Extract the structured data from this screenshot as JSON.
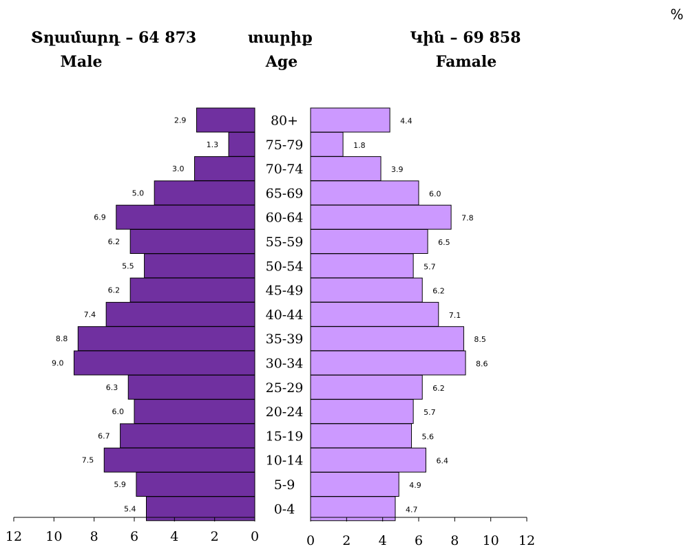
{
  "unit_label": "%",
  "headers": {
    "male_title": "Տղամարդ – 64 873",
    "male_subtitle": "Male",
    "age_title": "տարիք",
    "age_subtitle": "Age",
    "female_title": "Կին – 69 858",
    "female_subtitle": "Famale"
  },
  "chart_data": {
    "type": "bar",
    "orientation": "horizontal-population-pyramid",
    "categories": [
      "80+",
      "75-79",
      "70-74",
      "65-69",
      "60-64",
      "55-59",
      "50-54",
      "45-49",
      "40-44",
      "35-39",
      "30-34",
      "25-29",
      "20-24",
      "15-19",
      "10-14",
      "5-9",
      "0-4"
    ],
    "series": [
      {
        "name": "Male",
        "color": "#7030a0",
        "values": [
          2.9,
          1.3,
          3.0,
          5.0,
          6.9,
          6.2,
          5.5,
          6.2,
          7.4,
          8.8,
          9.0,
          6.3,
          6.0,
          6.7,
          7.5,
          5.9,
          5.4
        ],
        "labels": [
          "2.9",
          "1.3",
          "3.0",
          "5.0",
          "6.9",
          "6.2",
          "5.5",
          "6.2",
          "7.4",
          "8.8",
          "9.0",
          "6.3",
          "6.0",
          "6.7",
          "7.5",
          "5.9",
          "5.4"
        ]
      },
      {
        "name": "Famale",
        "color": "#cc99ff",
        "values": [
          4.4,
          1.8,
          3.9,
          6.0,
          7.8,
          6.5,
          5.7,
          6.2,
          7.1,
          8.5,
          8.6,
          6.2,
          5.7,
          5.6,
          6.4,
          4.9,
          4.7
        ],
        "labels": [
          "4.4",
          "1.8",
          "3.9",
          "6.0",
          "7.8",
          "6.5",
          "5.7",
          "6.2",
          "7.1",
          "8.5",
          "8.6",
          "6.2",
          "5.7",
          "5.6",
          "6.4",
          "4.9",
          "4.7"
        ]
      }
    ],
    "xlim": [
      0,
      12
    ],
    "xticks": [
      "0",
      "2",
      "4",
      "6",
      "8",
      "10",
      "12"
    ],
    "grid": false,
    "legend": "none"
  }
}
